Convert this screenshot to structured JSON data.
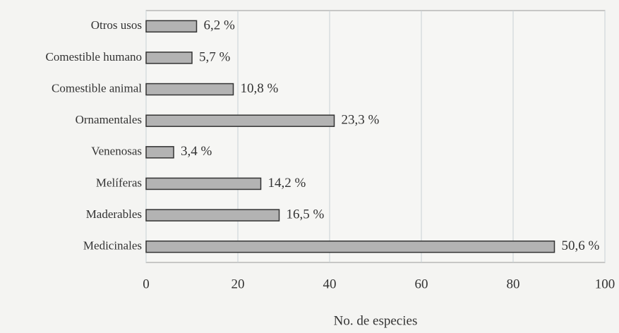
{
  "chart_data": {
    "type": "barh",
    "categories": [
      "Otros usos",
      "Comestible humano",
      "Comestible animal",
      "Ornamentales",
      "Venenosas",
      "Melíferas",
      "Maderables",
      "Medicinales"
    ],
    "values": [
      11,
      10,
      19,
      41,
      6,
      25,
      29,
      89
    ],
    "value_labels": [
      "6,2 %",
      "5,7 %",
      "10,8 %",
      "23,3 %",
      "3,4 %",
      "14,2 %",
      "16,5 %",
      "50,6 %"
    ],
    "color": "#b3b3b3",
    "xlabel": "No. de especies",
    "xlim": [
      0,
      100
    ],
    "xticks": [
      0,
      20,
      40,
      60,
      80,
      100
    ],
    "grid": true
  }
}
